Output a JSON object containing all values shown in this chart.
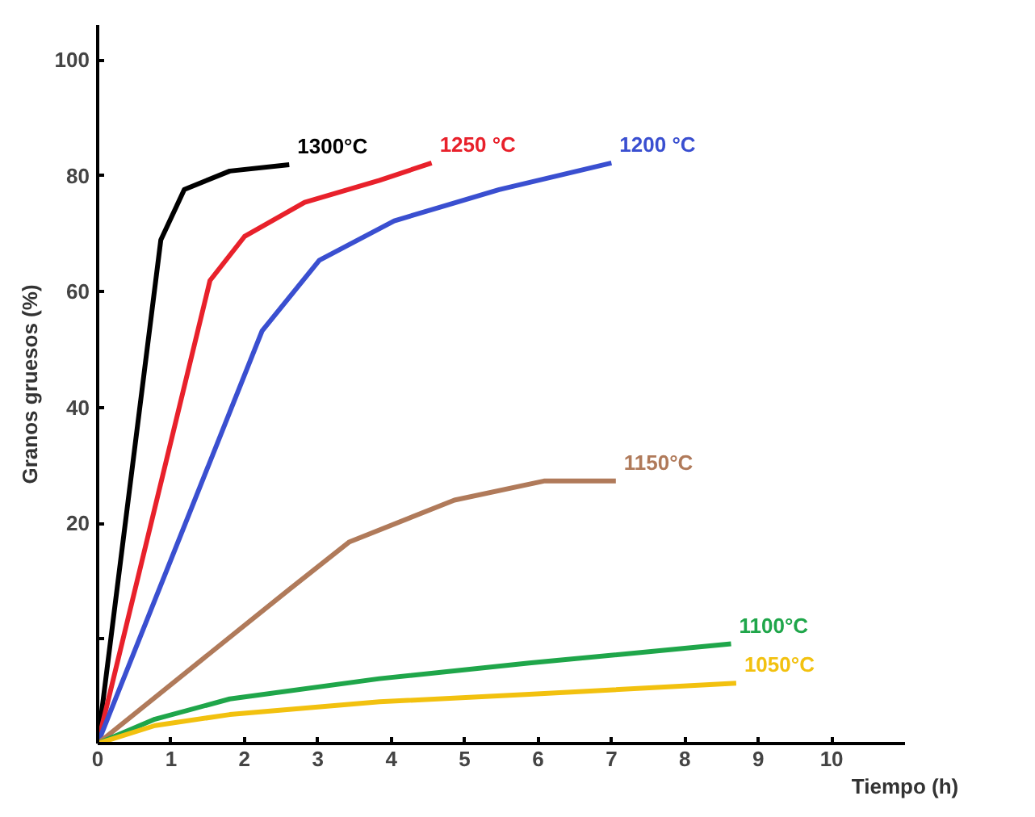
{
  "chart_data": {
    "type": "line",
    "xlabel": "Tiempo (h)",
    "ylabel": "Granos gruesos (%)",
    "xlim": [
      0,
      11
    ],
    "ylim": [
      -18,
      106
    ],
    "xticks": [
      0,
      1,
      2,
      3,
      4,
      5,
      6,
      7,
      8,
      9,
      10
    ],
    "yticks": [
      {
        "value": 0,
        "label": null
      },
      20,
      40,
      60,
      80,
      100
    ],
    "grid": false,
    "marker": "none",
    "line_style": "solid",
    "series": [
      {
        "name": "1300°C",
        "color": "#000000",
        "x": [
          0,
          0.86,
          1.18,
          1.8,
          2.61
        ],
        "values": [
          -18,
          68.9,
          77.6,
          80.8,
          81.9
        ]
      },
      {
        "name": "1250 °C",
        "color": "#e8212b",
        "x": [
          0,
          1.53,
          2.0,
          2.82,
          3.84,
          4.55
        ],
        "values": [
          -18,
          61.9,
          69.5,
          75.4,
          79.2,
          82.2
        ]
      },
      {
        "name": "1200 °C",
        "color": "#3a4fd0",
        "x": [
          0,
          2.24,
          3.02,
          4.04,
          5.47,
          7.0
        ],
        "values": [
          -18,
          53.2,
          65.4,
          72.2,
          77.6,
          82.2
        ]
      },
      {
        "name": "1150°C",
        "color": "#b07a5a",
        "x": [
          0,
          2.61,
          3.43,
          4.86,
          6.08,
          7.06
        ],
        "values": [
          -18,
          8.6,
          16.8,
          24,
          27.3,
          27.3
        ]
      },
      {
        "name": "1100°C",
        "color": "#1fa64a",
        "x": [
          0,
          0.78,
          1.8,
          3.84,
          5.88,
          8.63
        ],
        "values": [
          -18,
          -13.8,
          -10.3,
          -6.8,
          -4.1,
          -0.8
        ]
      },
      {
        "name": "1050°C",
        "color": "#f2c10f",
        "x": [
          0,
          0.78,
          1.8,
          3.84,
          5.88,
          8.7
        ],
        "values": [
          -18,
          -14.9,
          -13,
          -10.8,
          -9.5,
          -7.6
        ]
      }
    ]
  }
}
